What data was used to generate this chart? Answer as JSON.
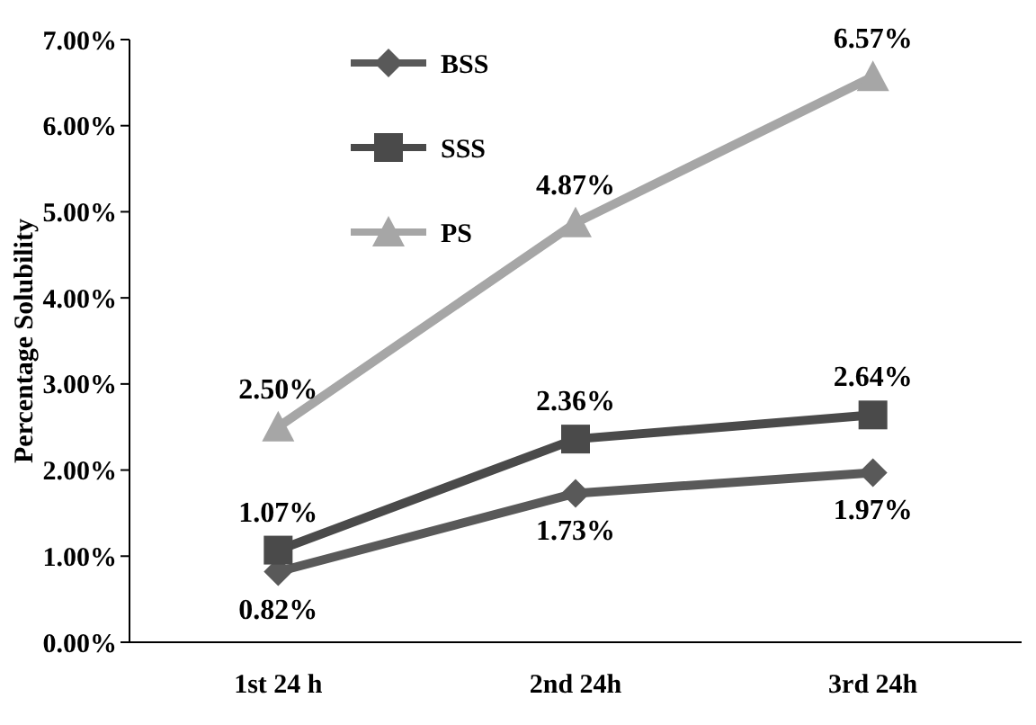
{
  "chart_data": {
    "type": "line",
    "ylabel": "Percentage  Solubility",
    "categories": [
      "1st 24 h",
      "2nd 24h",
      "3rd 24h"
    ],
    "ylim": [
      0,
      7
    ],
    "yticks": [
      {
        "value": 0,
        "label": "0.00%"
      },
      {
        "value": 1,
        "label": "1.00%"
      },
      {
        "value": 2,
        "label": "2.00%"
      },
      {
        "value": 3,
        "label": "3.00%"
      },
      {
        "value": 4,
        "label": "4.00%"
      },
      {
        "value": 5,
        "label": "5.00%"
      },
      {
        "value": 6,
        "label": "6.00%"
      },
      {
        "value": 7,
        "label": "7.00%"
      }
    ],
    "legend": "top left",
    "grid": false,
    "line_style": "solid",
    "series": [
      {
        "name": "BSS",
        "color": "#595959",
        "marker": "diamond",
        "values": [
          0.82,
          1.73,
          1.97
        ],
        "value_labels": [
          "0.82%",
          "1.73%",
          "1.97%"
        ]
      },
      {
        "name": "SSS",
        "color": "#4a4a4a",
        "marker": "square",
        "values": [
          1.07,
          2.36,
          2.64
        ],
        "value_labels": [
          "1.07%",
          "2.36%",
          "2.64%"
        ]
      },
      {
        "name": "PS",
        "color": "#a6a6a6",
        "marker": "triangle",
        "values": [
          2.5,
          4.87,
          6.57
        ],
        "value_labels": [
          "2.50%",
          "4.87%",
          "6.57%"
        ]
      }
    ]
  }
}
